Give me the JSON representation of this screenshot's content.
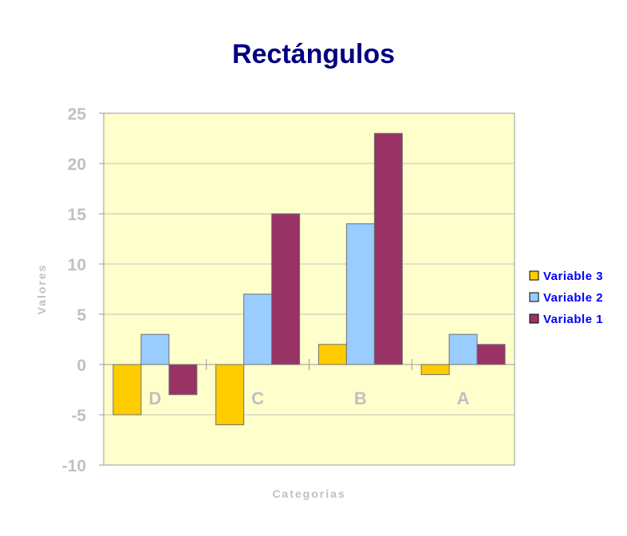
{
  "colors": {
    "plot_bg": "#ffffcc",
    "grid": "#c0c0c0",
    "axis": "#999999",
    "title": "#000080",
    "label": "#c0c0c0",
    "legend_text": "#0000ff",
    "bar_stroke": "#707070"
  },
  "chart_data": {
    "type": "bar",
    "title": "Rectángulos",
    "xlabel": "Categorias",
    "ylabel": "Valores",
    "categories": [
      "D",
      "C",
      "B",
      "A"
    ],
    "ylim": [
      -10,
      25
    ],
    "yticks": [
      25,
      20,
      15,
      10,
      5,
      0,
      -5,
      -10
    ],
    "grid": true,
    "legend_position": "right",
    "series": [
      {
        "name": "Variable 3",
        "color": "#ffcc00",
        "values": [
          -5,
          -6,
          2,
          -1
        ]
      },
      {
        "name": "Variable 2",
        "color": "#99ccff",
        "values": [
          3,
          7,
          14,
          3
        ]
      },
      {
        "name": "Variable 1",
        "color": "#993366",
        "values": [
          -3,
          15,
          23,
          2
        ]
      }
    ]
  }
}
